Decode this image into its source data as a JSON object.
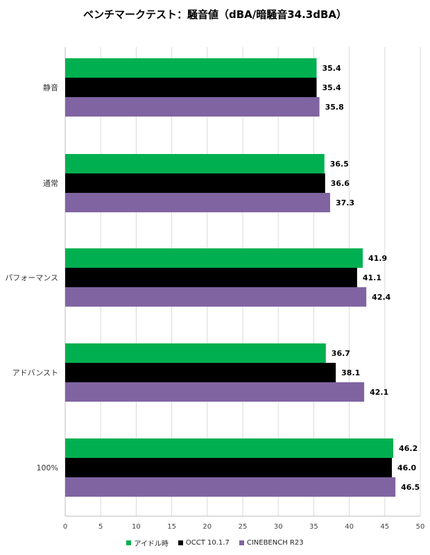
{
  "chart_data": {
    "type": "bar",
    "orientation": "horizontal",
    "title": "ベンチマークテスト：騒音値（dBA/暗騒音34.3dBA）",
    "categories": [
      "静音",
      "通常",
      "パフォーマンス",
      "アドバンスト",
      "100%"
    ],
    "series": [
      {
        "name": "アイドル時",
        "color": "#00b050",
        "values": [
          35.4,
          36.5,
          41.9,
          36.7,
          46.2
        ]
      },
      {
        "name": "OCCT 10.1.7",
        "color": "#000000",
        "values": [
          35.4,
          36.6,
          41.1,
          38.1,
          46.0
        ]
      },
      {
        "name": "CINEBENCH R23",
        "color": "#8064a2",
        "values": [
          35.8,
          37.3,
          42.4,
          42.1,
          46.5
        ]
      }
    ],
    "xlim": [
      0,
      50
    ],
    "xticks": [
      0,
      5,
      10,
      15,
      20,
      25,
      30,
      35,
      40,
      45,
      50
    ],
    "grid": true,
    "legend": "bottom",
    "value_labels": [
      [
        "35.4",
        "36.5",
        "41.9",
        "36.7",
        "46.2"
      ],
      [
        "35.4",
        "36.6",
        "41.1",
        "38.1",
        "46.0"
      ],
      [
        "35.8",
        "37.3",
        "42.4",
        "42.1",
        "46.5"
      ]
    ]
  }
}
